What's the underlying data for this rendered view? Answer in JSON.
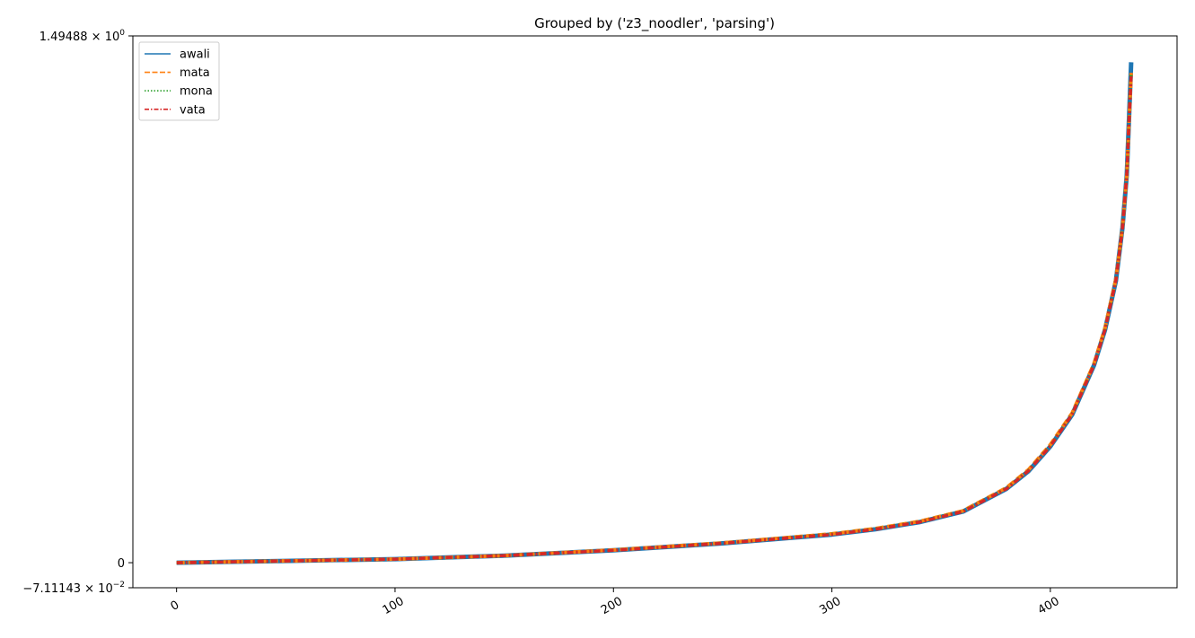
{
  "chart_data": {
    "type": "line",
    "title": "Grouped by ('z3_noodler', 'parsing')",
    "xlabel": "",
    "ylabel": "",
    "xlim": [
      -20,
      458
    ],
    "ylim": [
      -0.0711143,
      1.49488
    ],
    "grid": false,
    "legend_position": "top-left",
    "x_ticks": [
      {
        "value": 0,
        "label": "0"
      },
      {
        "value": 100,
        "label": "100"
      },
      {
        "value": 200,
        "label": "200"
      },
      {
        "value": 300,
        "label": "300"
      },
      {
        "value": 400,
        "label": "400"
      }
    ],
    "y_ticks": [
      {
        "value": 1.49488,
        "mantissa": "1.49488",
        "base": "10",
        "exp": "0"
      },
      {
        "value": 0,
        "mantissa": "0",
        "base": "",
        "exp": ""
      },
      {
        "value": -0.0711143,
        "mantissa": "−7.11143",
        "base": "10",
        "exp": "−2"
      }
    ],
    "x": [
      0,
      50,
      100,
      150,
      200,
      250,
      300,
      320,
      340,
      360,
      380,
      390,
      400,
      410,
      420,
      425,
      430,
      433,
      435,
      436,
      437
    ],
    "series": [
      {
        "name": "awali",
        "color": "#1f77b4",
        "dash": "solid",
        "values": [
          0,
          0.005,
          0.01,
          0.02,
          0.035,
          0.055,
          0.08,
          0.095,
          0.115,
          0.145,
          0.21,
          0.26,
          0.33,
          0.42,
          0.56,
          0.66,
          0.8,
          0.95,
          1.1,
          1.26,
          1.42
        ]
      },
      {
        "name": "mata",
        "color": "#ff7f0e",
        "dash": "dashed",
        "values": [
          0,
          0.005,
          0.01,
          0.02,
          0.036,
          0.056,
          0.082,
          0.097,
          0.117,
          0.147,
          0.213,
          0.264,
          0.335,
          0.425,
          0.565,
          0.665,
          0.805,
          0.95,
          1.1,
          1.25,
          1.39
        ]
      },
      {
        "name": "mona",
        "color": "#2ca02c",
        "dash": "dotted",
        "values": [
          0,
          0.005,
          0.01,
          0.02,
          0.035,
          0.055,
          0.081,
          0.096,
          0.116,
          0.146,
          0.211,
          0.262,
          0.332,
          0.422,
          0.562,
          0.662,
          0.802,
          0.95,
          1.1,
          1.25,
          1.39
        ]
      },
      {
        "name": "vata",
        "color": "#d62728",
        "dash": "dashdot",
        "values": [
          0,
          0.005,
          0.01,
          0.02,
          0.035,
          0.055,
          0.08,
          0.095,
          0.115,
          0.145,
          0.21,
          0.261,
          0.331,
          0.421,
          0.561,
          0.661,
          0.801,
          0.95,
          1.1,
          1.25,
          1.38
        ]
      }
    ]
  }
}
